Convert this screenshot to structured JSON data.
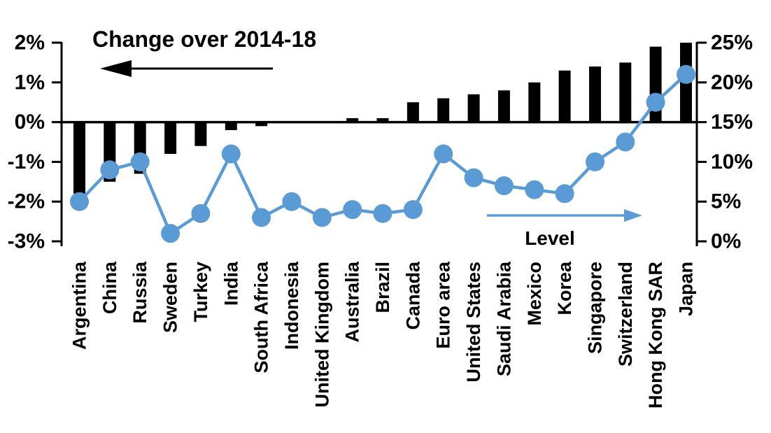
{
  "chart_data": {
    "type": "bar",
    "subtype": "combo-bar-line-dual-axis",
    "title": "",
    "grid": false,
    "categories": [
      "Argentina",
      "China",
      "Russia",
      "Sweden",
      "Turkey",
      "India",
      "South Africa",
      "Indonesia",
      "United Kingdom",
      "Australia",
      "Brazil",
      "Canada",
      "Euro area",
      "United States",
      "Saudi Arabia",
      "Mexico",
      "Korea",
      "Singapore",
      "Switzerland",
      "Hong Kong SAR",
      "Japan"
    ],
    "series": [
      {
        "name": "Change over 2014-18",
        "type": "bar",
        "axis": "left",
        "color": "#000000",
        "values": [
          -1.8,
          -1.5,
          -1.3,
          -0.8,
          -0.6,
          -0.2,
          -0.1,
          0,
          0,
          0.1,
          0.1,
          0.5,
          0.6,
          0.7,
          0.8,
          1.0,
          1.3,
          1.4,
          1.5,
          1.9,
          2.0
        ]
      },
      {
        "name": "Level",
        "type": "line",
        "axis": "right",
        "color": "#5B9BD5",
        "values": [
          5,
          9,
          10,
          1,
          3.5,
          11,
          3,
          5,
          3,
          4,
          3.5,
          4,
          11,
          8,
          7,
          6.5,
          6,
          10,
          12.5,
          17.5,
          21
        ]
      }
    ],
    "left_axis": {
      "min": -3,
      "max": 2,
      "tick_values": [
        2,
        1,
        0,
        -1,
        -2,
        -3
      ],
      "tick_labels": [
        "2%",
        "1%",
        "0%",
        "-1%",
        "-2%",
        "-3%"
      ]
    },
    "right_axis": {
      "min": 0,
      "max": 25,
      "tick_values": [
        25,
        20,
        15,
        10,
        5,
        0
      ],
      "tick_labels": [
        "25%",
        "20%",
        "15%",
        "10%",
        "5%",
        "0%"
      ]
    },
    "annotations": [
      {
        "text": "Change over 2014-18",
        "arrow_direction": "left",
        "color": "#000000"
      },
      {
        "text": "Level",
        "arrow_direction": "right",
        "color": "#5B9BD5"
      }
    ],
    "legend_position": "in-plot arrow annotations"
  }
}
